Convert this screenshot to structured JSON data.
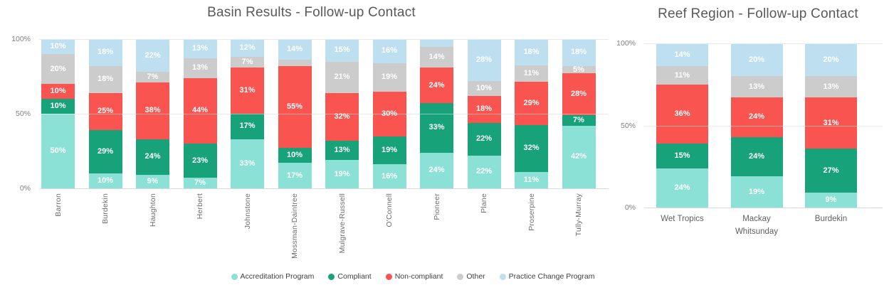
{
  "page": {
    "background": "#ffffff"
  },
  "palette": {
    "title_color": "#595959",
    "tick_color": "#7f7f7f",
    "x_label_color": "#6e6e6e",
    "gridline_color": "#d9d9d9",
    "data_label_color": "#ffffff",
    "legend_text_color": "#404040",
    "accreditation": "#8ce1d6",
    "compliant": "#17a27a",
    "non_compliant": "#f95450",
    "other": "#cccccc",
    "practice_change": "#bedff0"
  },
  "legend": {
    "items": [
      {
        "label": "Accreditation Program",
        "color": "#8ce1d6"
      },
      {
        "label": "Compliant",
        "color": "#17a27a"
      },
      {
        "label": "Non-compliant",
        "color": "#f95450"
      },
      {
        "label": "Other",
        "color": "#cccccc"
      },
      {
        "label": "Practice Change Program",
        "color": "#bedff0"
      }
    ]
  },
  "chart_data": [
    {
      "type": "bar",
      "stacked": true,
      "title": "Basin Results - Follow-up Contact",
      "xlabel": "",
      "ylabel": "",
      "ylim": [
        0,
        100
      ],
      "grid": true,
      "legend_position": "bottom",
      "x_label_rotation": -90,
      "yticks": [
        {
          "label": "0%",
          "value": 0
        },
        {
          "label": "50%",
          "value": 50
        },
        {
          "label": "100%",
          "value": 100
        }
      ],
      "categories": [
        "Barron",
        "Burdekin",
        "Haughton",
        "Herbert",
        "Johnstone",
        "Mossman-Daintree",
        "Mulgrave-Russell",
        "O'Connell",
        "Pioneer",
        "Plane",
        "Proserpine",
        "Tully-Murray"
      ],
      "series": [
        {
          "name": "Accreditation Program",
          "color": "#8ce1d6",
          "values": [
            50,
            10,
            9,
            7,
            33,
            17,
            19,
            16,
            24,
            22,
            11,
            42
          ],
          "labels": [
            "50%",
            "10%",
            "9%",
            "7%",
            "33%",
            "17%",
            "19%",
            "16%",
            "24%",
            "22%",
            "11%",
            "42%"
          ]
        },
        {
          "name": "Compliant",
          "color": "#17a27a",
          "values": [
            10,
            29,
            24,
            23,
            17,
            10,
            13,
            19,
            33,
            22,
            32,
            7
          ],
          "labels": [
            "10%",
            "29%",
            "24%",
            "23%",
            "17%",
            "10%",
            "13%",
            "19%",
            "33%",
            "22%",
            "32%",
            "7%"
          ]
        },
        {
          "name": "Non-compliant",
          "color": "#f95450",
          "values": [
            10,
            25,
            38,
            44,
            31,
            55,
            32,
            30,
            24,
            18,
            29,
            28
          ],
          "labels": [
            "10%",
            "25%",
            "38%",
            "44%",
            "31%",
            "55%",
            "32%",
            "30%",
            "24%",
            "18%",
            "29%",
            "28%"
          ]
        },
        {
          "name": "Other",
          "color": "#cccccc",
          "values": [
            20,
            18,
            7,
            13,
            7,
            4,
            21,
            19,
            14,
            10,
            11,
            5
          ],
          "labels": [
            "20%",
            "18%",
            "7%",
            "13%",
            "7%",
            "",
            "21%",
            "19%",
            "14%",
            "10%",
            "11%",
            "5%"
          ]
        },
        {
          "name": "Practice Change Program",
          "color": "#bedff0",
          "values": [
            10,
            18,
            22,
            13,
            12,
            14,
            15,
            16,
            5,
            28,
            18,
            18
          ],
          "labels": [
            "10%",
            "18%",
            "22%",
            "13%",
            "12%",
            "14%",
            "15%",
            "16%",
            "",
            "28%",
            "18%",
            "18%"
          ]
        }
      ]
    },
    {
      "type": "bar",
      "stacked": true,
      "title": "Reef Region - Follow-up Contact",
      "xlabel": "",
      "ylabel": "",
      "ylim": [
        0,
        100
      ],
      "grid": true,
      "legend_position": "none",
      "x_label_rotation": 0,
      "yticks": [
        {
          "label": "0%",
          "value": 0
        },
        {
          "label": "50%",
          "value": 50
        },
        {
          "label": "100%",
          "value": 100
        }
      ],
      "categories": [
        "Wet Tropics",
        "Mackay Whitsunday",
        "Burdekin"
      ],
      "series": [
        {
          "name": "Accreditation Program",
          "color": "#8ce1d6",
          "values": [
            24,
            19,
            9
          ],
          "labels": [
            "24%",
            "19%",
            "9%"
          ]
        },
        {
          "name": "Compliant",
          "color": "#17a27a",
          "values": [
            15,
            24,
            27
          ],
          "labels": [
            "15%",
            "24%",
            "27%"
          ]
        },
        {
          "name": "Non-compliant",
          "color": "#f95450",
          "values": [
            36,
            24,
            31
          ],
          "labels": [
            "36%",
            "24%",
            "31%"
          ]
        },
        {
          "name": "Other",
          "color": "#cccccc",
          "values": [
            11,
            13,
            13
          ],
          "labels": [
            "11%",
            "13%",
            "13%"
          ]
        },
        {
          "name": "Practice Change Program",
          "color": "#bedff0",
          "values": [
            14,
            20,
            20
          ],
          "labels": [
            "14%",
            "20%",
            "20%"
          ]
        }
      ]
    }
  ]
}
